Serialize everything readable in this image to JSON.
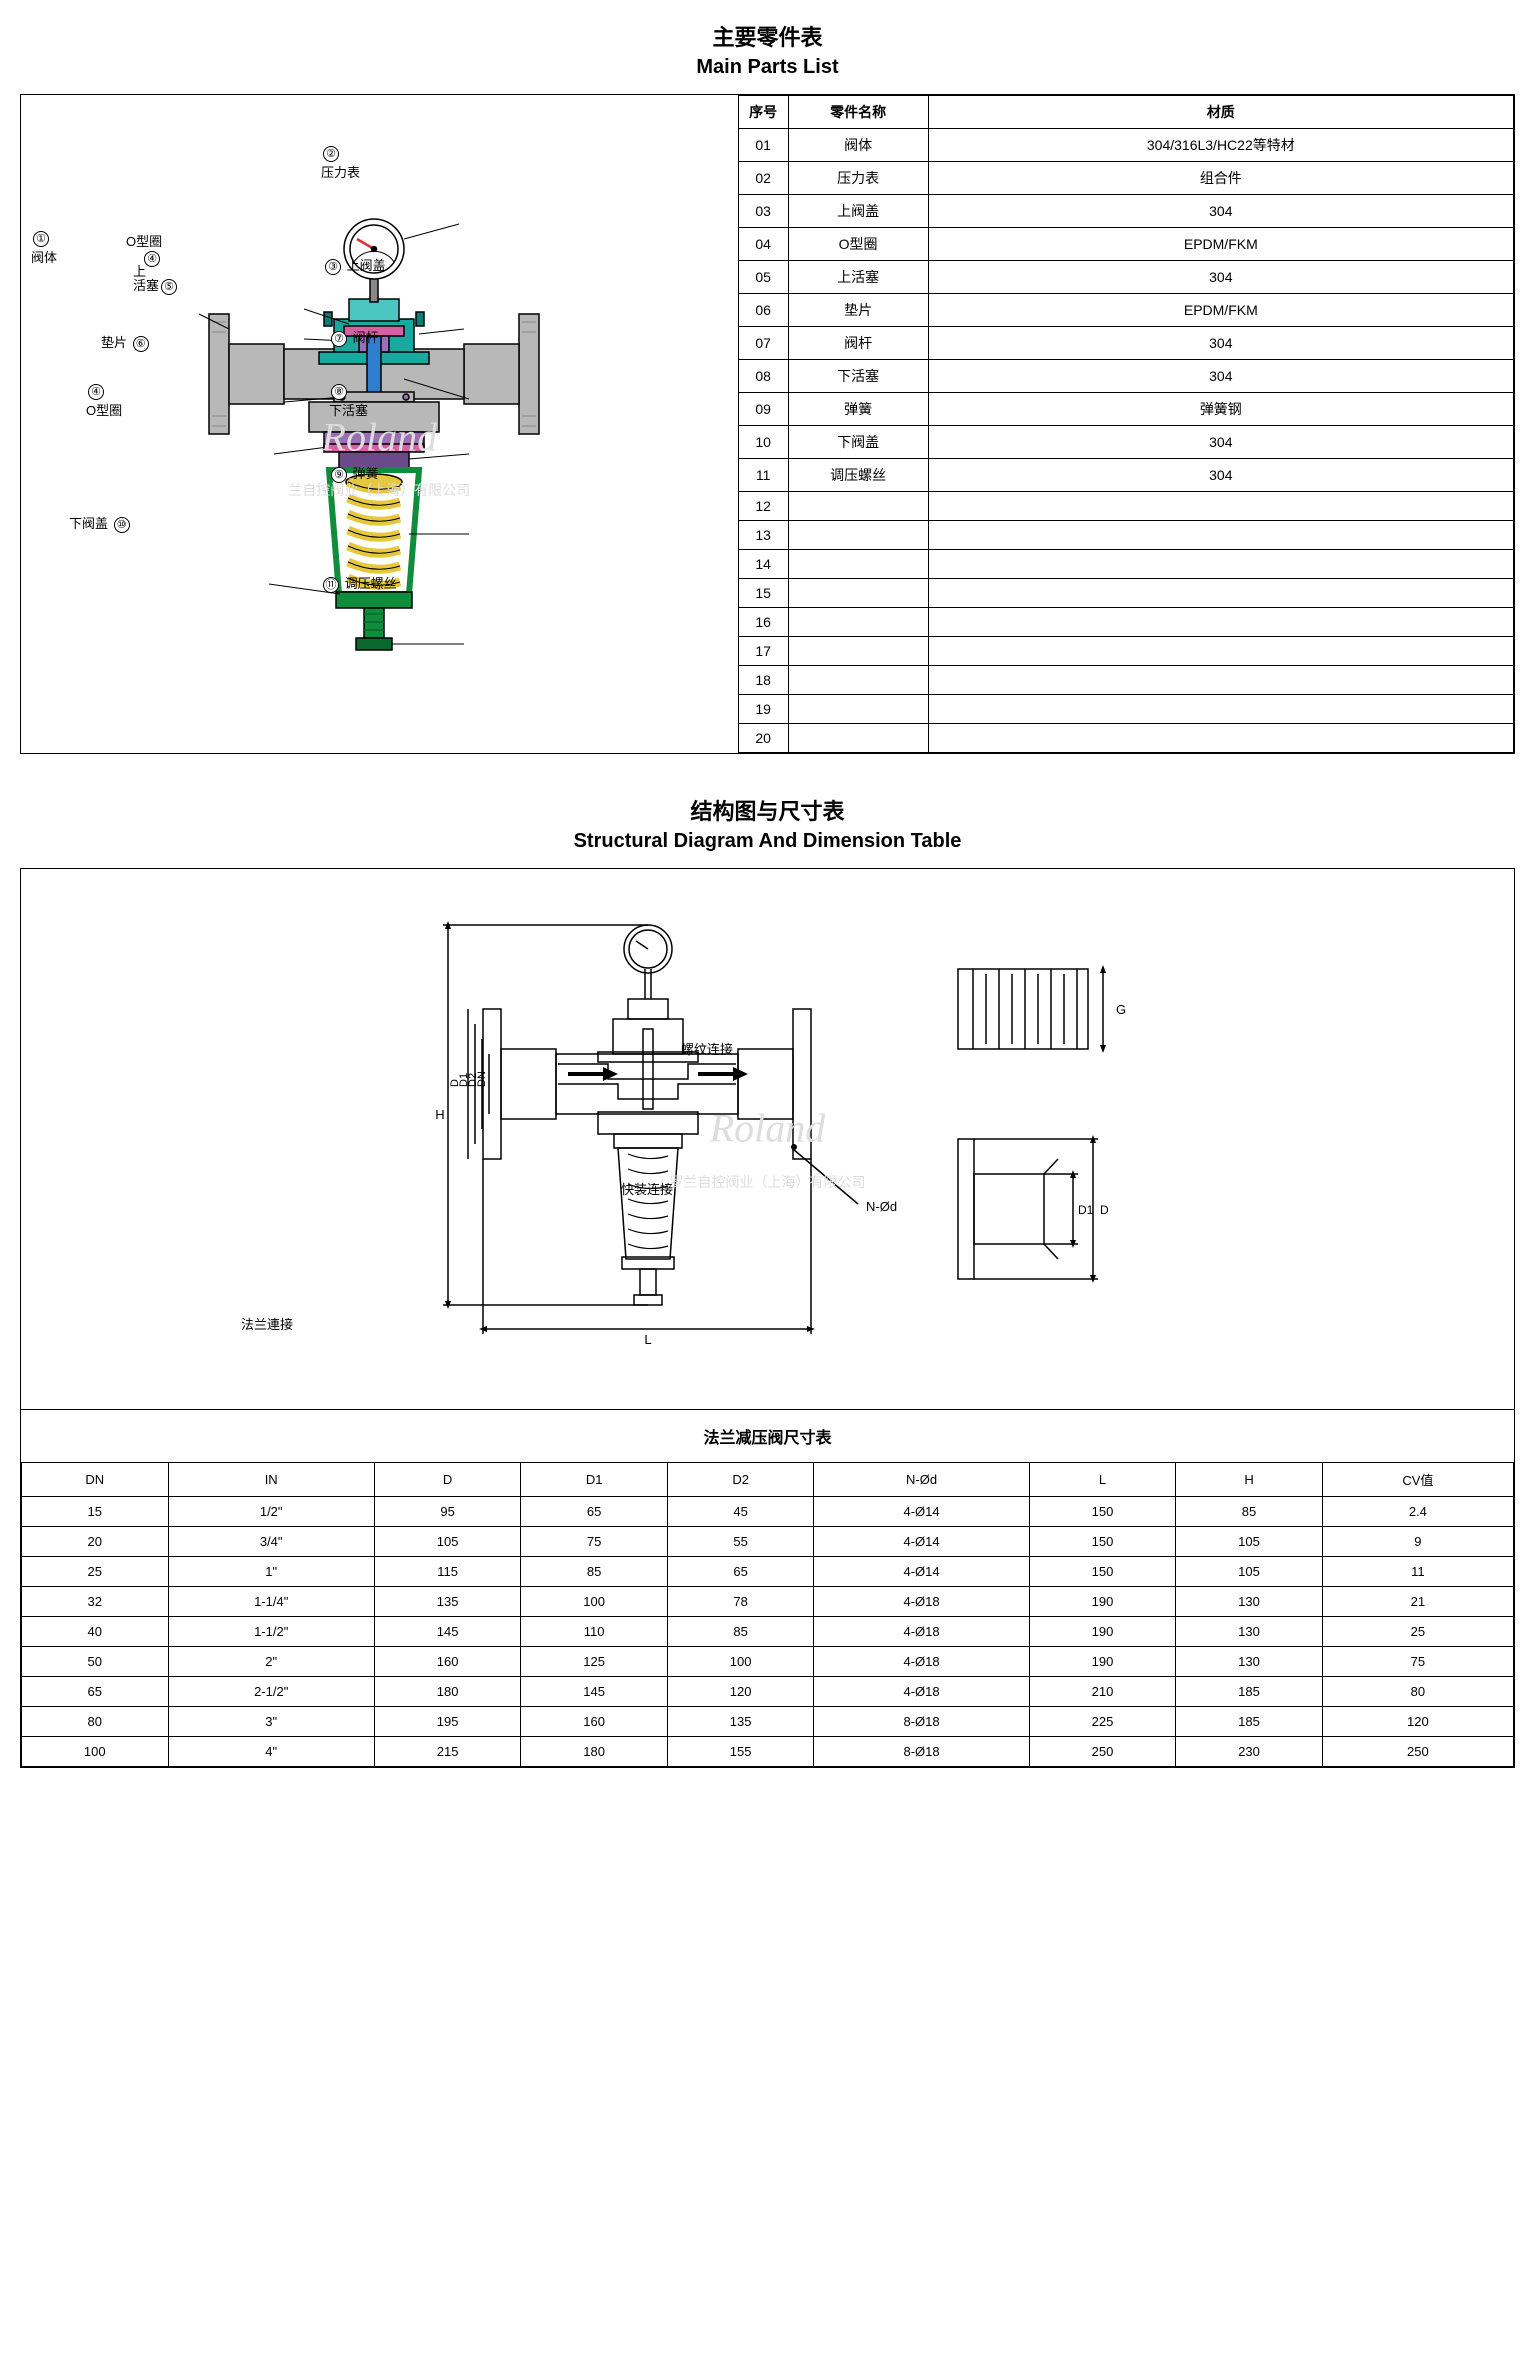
{
  "section1": {
    "title_cn": "主要零件表",
    "title_en": "Main Parts List"
  },
  "section2": {
    "title_cn": "结构图与尺寸表",
    "title_en": "Structural Diagram And Dimension Table"
  },
  "parts_table": {
    "headers": {
      "num": "序号",
      "name": "零件名称",
      "material": "材质"
    },
    "rows": [
      {
        "num": "01",
        "name": "阀体",
        "material": "304/316L3/HC22等特材"
      },
      {
        "num": "02",
        "name": "压力表",
        "material": "组合件"
      },
      {
        "num": "03",
        "name": "上阀盖",
        "material": "304"
      },
      {
        "num": "04",
        "name": "O型圈",
        "material": "EPDM/FKM"
      },
      {
        "num": "05",
        "name": "上活塞",
        "material": "304"
      },
      {
        "num": "06",
        "name": "垫片",
        "material": "EPDM/FKM"
      },
      {
        "num": "07",
        "name": "阀杆",
        "material": "304"
      },
      {
        "num": "08",
        "name": "下活塞",
        "material": "304"
      },
      {
        "num": "09",
        "name": "弹簧",
        "material": "弹簧钢"
      },
      {
        "num": "10",
        "name": "下阀盖",
        "material": "304"
      },
      {
        "num": "11",
        "name": "调压螺丝",
        "material": "304"
      },
      {
        "num": "12",
        "name": "",
        "material": ""
      },
      {
        "num": "13",
        "name": "",
        "material": ""
      },
      {
        "num": "14",
        "name": "",
        "material": ""
      },
      {
        "num": "15",
        "name": "",
        "material": ""
      },
      {
        "num": "16",
        "name": "",
        "material": ""
      },
      {
        "num": "17",
        "name": "",
        "material": ""
      },
      {
        "num": "18",
        "name": "",
        "material": ""
      },
      {
        "num": "19",
        "name": "",
        "material": ""
      },
      {
        "num": "20",
        "name": "",
        "material": ""
      }
    ]
  },
  "colored_diagram": {
    "callouts": {
      "c1": {
        "num": "①",
        "label": "阀体"
      },
      "c2": {
        "num": "②",
        "label": "压力表"
      },
      "c3": {
        "num": "③",
        "label": "上阀盖"
      },
      "c4a": {
        "num": "④",
        "label": "O型圈"
      },
      "c4b": {
        "num": "④",
        "label": "O型圈"
      },
      "c5": {
        "num": "⑤",
        "label": "上活塞",
        "inner": "上\n活塞"
      },
      "c6": {
        "num": "⑥",
        "label": "垫片"
      },
      "c7": {
        "num": "⑦",
        "label": "阀杆"
      },
      "c8": {
        "num": "⑧",
        "label": "下活塞"
      },
      "c9": {
        "num": "⑨",
        "label": "弹簧"
      },
      "c10": {
        "num": "⑩",
        "label": "下阀盖"
      },
      "c11": {
        "num": "⑪",
        "label": "调压螺丝"
      }
    },
    "colors": {
      "body_grey": "#b8b8b8",
      "body_grey_dark": "#888888",
      "flange_hatch": "#999999",
      "teal": "#1aa9a0",
      "teal_dark": "#0b7e77",
      "cyan": "#4cc6c0",
      "blue": "#2f7fd1",
      "purple": "#9b6fb5",
      "purple_dark": "#6c4a8a",
      "magenta": "#d95fa3",
      "spring_yellow": "#e6c83e",
      "spring_shadow": "#b8a030",
      "green": "#0f8c3c",
      "green_dark": "#0a6a2d",
      "gauge_bg": "#ffffff",
      "gauge_needle": "#e03030",
      "outline": "#000000"
    },
    "watermark": "Roland",
    "watermark_sub": "兰自控阀业（上海）有限公司"
  },
  "structural_diagram": {
    "labels": {
      "flange_connect": "法兰連接",
      "thread_connect": "螺纹连接",
      "quick_connect": "快装连接",
      "L": "L",
      "H": "H",
      "D": "D",
      "D1": "D1",
      "D2": "D2",
      "DN": "DN",
      "NOd": "N-Ød",
      "G": "G",
      "D_right": "D",
      "D1_right": "D1"
    },
    "watermark": "Roland",
    "watermark_sub": "罗兰自控阀业（上海）有限公司",
    "colors": {
      "line": "#000000",
      "bg": "#ffffff",
      "spring": "#000000"
    }
  },
  "dim_table": {
    "title": "法兰减压阀尺寸表",
    "headers": [
      "DN",
      "IN",
      "D",
      "D1",
      "D2",
      "N-Ød",
      "L",
      "H",
      "CV值"
    ],
    "rows": [
      [
        "15",
        "1/2\"",
        "95",
        "65",
        "45",
        "4-Ø14",
        "150",
        "85",
        "2.4"
      ],
      [
        "20",
        "3/4\"",
        "105",
        "75",
        "55",
        "4-Ø14",
        "150",
        "105",
        "9"
      ],
      [
        "25",
        "1\"",
        "115",
        "85",
        "65",
        "4-Ø14",
        "150",
        "105",
        "11"
      ],
      [
        "32",
        "1-1/4\"",
        "135",
        "100",
        "78",
        "4-Ø18",
        "190",
        "130",
        "21"
      ],
      [
        "40",
        "1-1/2\"",
        "145",
        "110",
        "85",
        "4-Ø18",
        "190",
        "130",
        "25"
      ],
      [
        "50",
        "2\"",
        "160",
        "125",
        "100",
        "4-Ø18",
        "190",
        "130",
        "75"
      ],
      [
        "65",
        "2-1/2\"",
        "180",
        "145",
        "120",
        "4-Ø18",
        "210",
        "185",
        "80"
      ],
      [
        "80",
        "3\"",
        "195",
        "160",
        "135",
        "8-Ø18",
        "225",
        "185",
        "120"
      ],
      [
        "100",
        "4\"",
        "215",
        "180",
        "155",
        "8-Ø18",
        "250",
        "230",
        "250"
      ]
    ]
  }
}
